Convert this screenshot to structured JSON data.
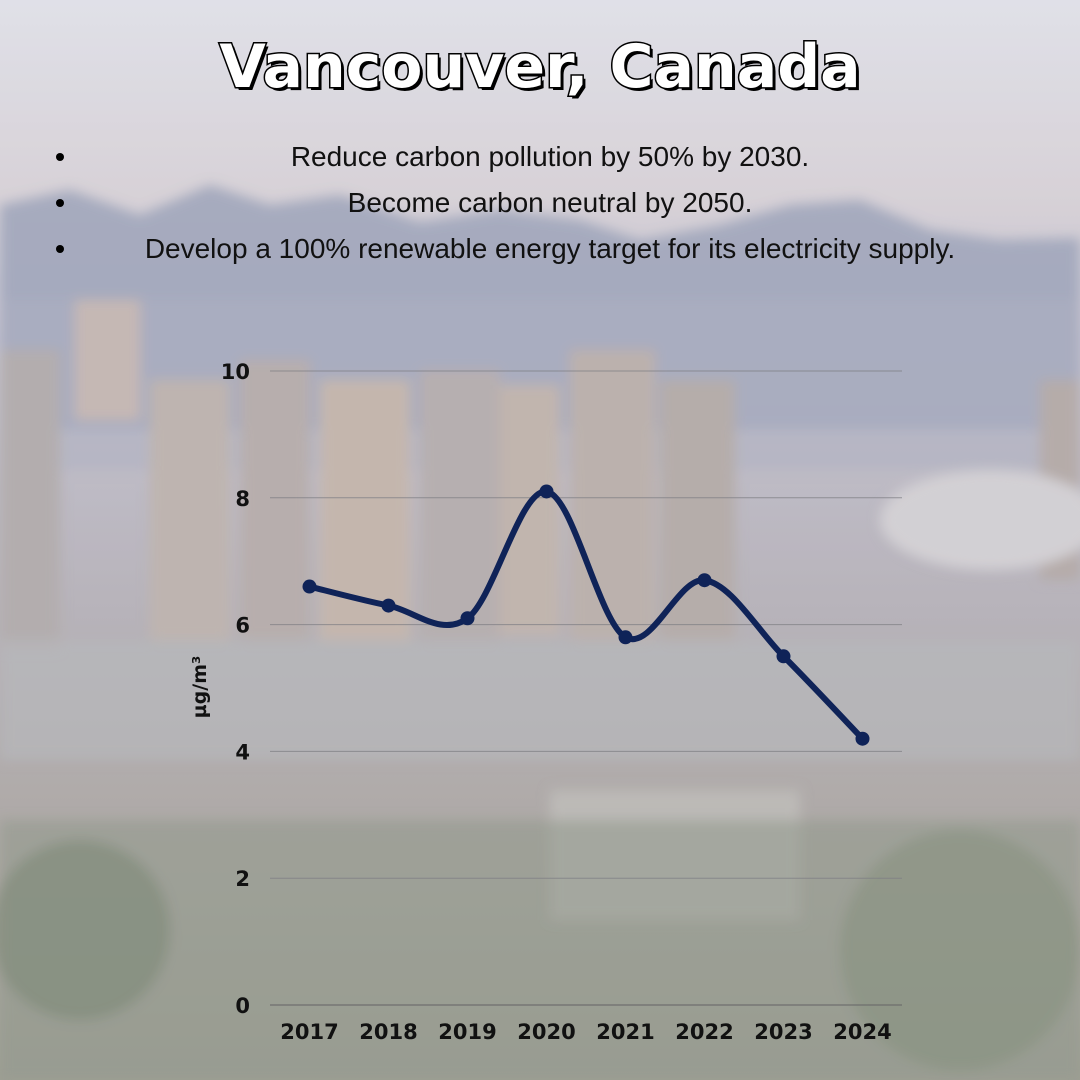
{
  "title": "Vancouver, Canada",
  "goals": [
    "Reduce carbon pollution by 50% by 2030.",
    "Become carbon neutral by 2050.",
    "Develop a 100% renewable energy target for its electricity supply."
  ],
  "chart_data": {
    "type": "line",
    "title": "",
    "xlabel": "",
    "ylabel": "µg/m³",
    "categories": [
      "2017",
      "2018",
      "2019",
      "2020",
      "2021",
      "2022",
      "2023",
      "2024"
    ],
    "series": [
      {
        "values": [
          6.6,
          6.3,
          6.1,
          8.1,
          5.8,
          6.7,
          5.5,
          4.2
        ]
      }
    ],
    "ylim": [
      0,
      10
    ],
    "yticks": [
      0,
      2,
      4,
      6,
      8,
      10
    ],
    "grid": true,
    "smooth": true,
    "line_color": "#0f2358"
  }
}
